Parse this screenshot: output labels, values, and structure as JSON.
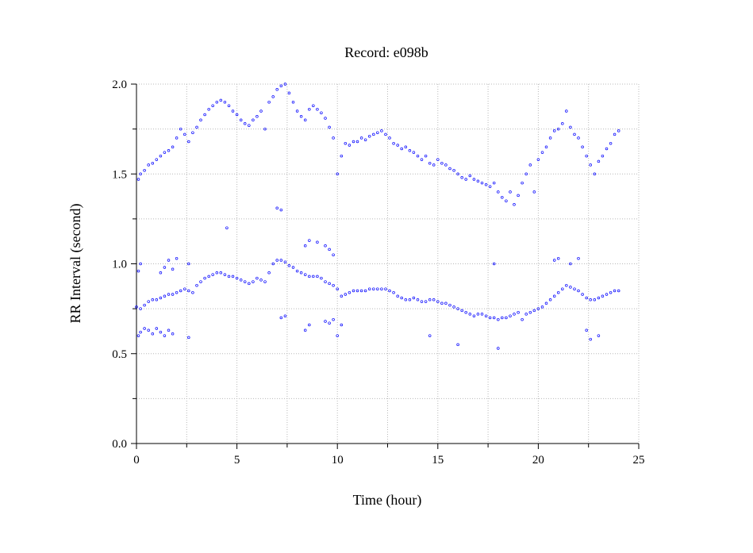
{
  "chart_data": {
    "type": "scatter",
    "title": "Record:  e098b",
    "xlabel": "Time (hour)",
    "ylabel": "RR Interval (second)",
    "xlim": [
      0,
      25
    ],
    "ylim": [
      0.0,
      2.0
    ],
    "xticks": [
      0,
      5,
      10,
      15,
      20,
      25
    ],
    "xtick_labels": [
      "0",
      "5",
      "10",
      "15",
      "20",
      "25"
    ],
    "yticks": [
      0.0,
      0.5,
      1.0,
      1.5,
      2.0
    ],
    "ytick_labels": [
      "0.0",
      "0.5",
      "1.0",
      "1.5",
      "2.0"
    ],
    "grid": true,
    "marker": "circle-open",
    "color": "#0000ff",
    "series": [
      {
        "role": "main-rr-band",
        "points": [
          [
            0.0,
            0.76
          ],
          [
            0.2,
            0.75
          ],
          [
            0.4,
            0.77
          ],
          [
            0.6,
            0.79
          ],
          [
            0.8,
            0.8
          ],
          [
            1.0,
            0.8
          ],
          [
            1.2,
            0.81
          ],
          [
            1.4,
            0.82
          ],
          [
            1.6,
            0.83
          ],
          [
            1.8,
            0.83
          ],
          [
            2.0,
            0.84
          ],
          [
            2.2,
            0.85
          ],
          [
            2.4,
            0.86
          ],
          [
            2.6,
            0.85
          ],
          [
            2.8,
            0.84
          ],
          [
            3.0,
            0.88
          ],
          [
            3.2,
            0.9
          ],
          [
            3.4,
            0.92
          ],
          [
            3.6,
            0.93
          ],
          [
            3.8,
            0.94
          ],
          [
            4.0,
            0.95
          ],
          [
            4.2,
            0.95
          ],
          [
            4.4,
            0.94
          ],
          [
            4.6,
            0.93
          ],
          [
            4.8,
            0.93
          ],
          [
            5.0,
            0.92
          ],
          [
            5.2,
            0.91
          ],
          [
            5.4,
            0.9
          ],
          [
            5.6,
            0.89
          ],
          [
            5.8,
            0.9
          ],
          [
            6.0,
            0.92
          ],
          [
            6.2,
            0.91
          ],
          [
            6.4,
            0.9
          ],
          [
            6.6,
            0.95
          ],
          [
            6.8,
            1.0
          ],
          [
            7.0,
            1.02
          ],
          [
            7.2,
            1.02
          ],
          [
            7.4,
            1.01
          ],
          [
            7.6,
            0.99
          ],
          [
            7.8,
            0.98
          ],
          [
            8.0,
            0.96
          ],
          [
            8.2,
            0.95
          ],
          [
            8.4,
            0.94
          ],
          [
            8.6,
            0.93
          ],
          [
            8.8,
            0.93
          ],
          [
            9.0,
            0.93
          ],
          [
            9.2,
            0.92
          ],
          [
            9.4,
            0.9
          ],
          [
            9.6,
            0.89
          ],
          [
            9.8,
            0.88
          ],
          [
            10.0,
            0.86
          ],
          [
            10.2,
            0.82
          ],
          [
            10.4,
            0.83
          ],
          [
            10.6,
            0.84
          ],
          [
            10.8,
            0.85
          ],
          [
            11.0,
            0.85
          ],
          [
            11.2,
            0.85
          ],
          [
            11.4,
            0.85
          ],
          [
            11.6,
            0.86
          ],
          [
            11.8,
            0.86
          ],
          [
            12.0,
            0.86
          ],
          [
            12.2,
            0.86
          ],
          [
            12.4,
            0.86
          ],
          [
            12.6,
            0.85
          ],
          [
            12.8,
            0.84
          ],
          [
            13.0,
            0.82
          ],
          [
            13.2,
            0.81
          ],
          [
            13.4,
            0.8
          ],
          [
            13.6,
            0.8
          ],
          [
            13.8,
            0.81
          ],
          [
            14.0,
            0.8
          ],
          [
            14.2,
            0.79
          ],
          [
            14.4,
            0.79
          ],
          [
            14.6,
            0.8
          ],
          [
            14.8,
            0.8
          ],
          [
            15.0,
            0.79
          ],
          [
            15.2,
            0.78
          ],
          [
            15.4,
            0.78
          ],
          [
            15.6,
            0.77
          ],
          [
            15.8,
            0.76
          ],
          [
            16.0,
            0.75
          ],
          [
            16.2,
            0.74
          ],
          [
            16.4,
            0.73
          ],
          [
            16.6,
            0.72
          ],
          [
            16.8,
            0.71
          ],
          [
            17.0,
            0.72
          ],
          [
            17.2,
            0.72
          ],
          [
            17.4,
            0.71
          ],
          [
            17.6,
            0.7
          ],
          [
            17.8,
            0.7
          ],
          [
            18.0,
            0.69
          ],
          [
            18.2,
            0.7
          ],
          [
            18.4,
            0.7
          ],
          [
            18.6,
            0.71
          ],
          [
            18.8,
            0.72
          ],
          [
            19.0,
            0.73
          ],
          [
            19.2,
            0.69
          ],
          [
            19.4,
            0.72
          ],
          [
            19.6,
            0.73
          ],
          [
            19.8,
            0.74
          ],
          [
            20.0,
            0.75
          ],
          [
            20.2,
            0.76
          ],
          [
            20.4,
            0.78
          ],
          [
            20.6,
            0.8
          ],
          [
            20.8,
            0.82
          ],
          [
            21.0,
            0.84
          ],
          [
            21.2,
            0.86
          ],
          [
            21.4,
            0.88
          ],
          [
            21.6,
            0.87
          ],
          [
            21.8,
            0.86
          ],
          [
            22.0,
            0.85
          ],
          [
            22.2,
            0.83
          ],
          [
            22.4,
            0.81
          ],
          [
            22.6,
            0.8
          ],
          [
            22.8,
            0.8
          ],
          [
            23.0,
            0.81
          ],
          [
            23.2,
            0.82
          ],
          [
            23.4,
            0.83
          ],
          [
            23.6,
            0.84
          ],
          [
            23.8,
            0.85
          ],
          [
            24.0,
            0.85
          ]
        ]
      },
      {
        "role": "upper-scattered-points",
        "points": [
          [
            0.1,
            1.47
          ],
          [
            0.2,
            1.5
          ],
          [
            0.4,
            1.52
          ],
          [
            0.6,
            1.55
          ],
          [
            0.8,
            1.56
          ],
          [
            1.0,
            1.58
          ],
          [
            1.2,
            1.6
          ],
          [
            1.4,
            1.62
          ],
          [
            1.6,
            1.63
          ],
          [
            1.8,
            1.65
          ],
          [
            2.0,
            1.7
          ],
          [
            2.2,
            1.75
          ],
          [
            2.4,
            1.72
          ],
          [
            2.6,
            1.68
          ],
          [
            2.8,
            1.73
          ],
          [
            3.0,
            1.76
          ],
          [
            3.2,
            1.8
          ],
          [
            3.4,
            1.83
          ],
          [
            3.6,
            1.86
          ],
          [
            3.8,
            1.88
          ],
          [
            4.0,
            1.9
          ],
          [
            4.2,
            1.91
          ],
          [
            4.4,
            1.9
          ],
          [
            4.6,
            1.88
          ],
          [
            4.8,
            1.85
          ],
          [
            5.0,
            1.83
          ],
          [
            5.2,
            1.8
          ],
          [
            5.4,
            1.78
          ],
          [
            5.6,
            1.77
          ],
          [
            5.8,
            1.8
          ],
          [
            6.0,
            1.82
          ],
          [
            6.2,
            1.85
          ],
          [
            6.4,
            1.75
          ],
          [
            6.6,
            1.9
          ],
          [
            6.8,
            1.93
          ],
          [
            7.0,
            1.97
          ],
          [
            7.2,
            1.99
          ],
          [
            7.4,
            2.0
          ],
          [
            7.6,
            1.95
          ],
          [
            7.8,
            1.9
          ],
          [
            8.0,
            1.85
          ],
          [
            8.2,
            1.82
          ],
          [
            8.4,
            1.8
          ],
          [
            8.6,
            1.86
          ],
          [
            8.8,
            1.88
          ],
          [
            9.0,
            1.86
          ],
          [
            9.2,
            1.84
          ],
          [
            9.4,
            1.81
          ],
          [
            9.6,
            1.76
          ],
          [
            9.8,
            1.7
          ],
          [
            10.0,
            1.5
          ],
          [
            10.2,
            1.6
          ],
          [
            10.4,
            1.67
          ],
          [
            10.6,
            1.66
          ],
          [
            10.8,
            1.68
          ],
          [
            11.0,
            1.68
          ],
          [
            11.2,
            1.7
          ],
          [
            11.4,
            1.69
          ],
          [
            11.6,
            1.71
          ],
          [
            11.8,
            1.72
          ],
          [
            12.0,
            1.73
          ],
          [
            12.2,
            1.74
          ],
          [
            12.4,
            1.72
          ],
          [
            12.6,
            1.7
          ],
          [
            12.8,
            1.67
          ],
          [
            13.0,
            1.66
          ],
          [
            13.2,
            1.64
          ],
          [
            13.4,
            1.65
          ],
          [
            13.6,
            1.63
          ],
          [
            13.8,
            1.62
          ],
          [
            14.0,
            1.6
          ],
          [
            14.2,
            1.58
          ],
          [
            14.4,
            1.6
          ],
          [
            14.6,
            1.56
          ],
          [
            14.8,
            1.55
          ],
          [
            15.0,
            1.58
          ],
          [
            15.2,
            1.56
          ],
          [
            15.4,
            1.55
          ],
          [
            15.6,
            1.53
          ],
          [
            15.8,
            1.52
          ],
          [
            16.0,
            1.5
          ],
          [
            16.2,
            1.48
          ],
          [
            16.4,
            1.47
          ],
          [
            16.6,
            1.49
          ],
          [
            16.8,
            1.47
          ],
          [
            17.0,
            1.46
          ],
          [
            17.2,
            1.45
          ],
          [
            17.4,
            1.44
          ],
          [
            17.6,
            1.43
          ],
          [
            17.8,
            1.45
          ],
          [
            18.0,
            1.4
          ],
          [
            18.2,
            1.37
          ],
          [
            18.4,
            1.35
          ],
          [
            18.6,
            1.4
          ],
          [
            18.8,
            1.33
          ],
          [
            19.0,
            1.38
          ],
          [
            19.2,
            1.45
          ],
          [
            19.4,
            1.5
          ],
          [
            19.6,
            1.55
          ],
          [
            19.8,
            1.4
          ],
          [
            20.0,
            1.58
          ],
          [
            20.2,
            1.62
          ],
          [
            20.4,
            1.65
          ],
          [
            20.6,
            1.7
          ],
          [
            20.8,
            1.74
          ],
          [
            21.0,
            1.75
          ],
          [
            21.2,
            1.78
          ],
          [
            21.4,
            1.85
          ],
          [
            21.6,
            1.76
          ],
          [
            21.8,
            1.72
          ],
          [
            22.0,
            1.7
          ],
          [
            22.2,
            1.65
          ],
          [
            22.4,
            1.6
          ],
          [
            22.6,
            1.55
          ],
          [
            22.8,
            1.5
          ],
          [
            23.0,
            1.57
          ],
          [
            23.2,
            1.6
          ],
          [
            23.4,
            1.64
          ],
          [
            23.6,
            1.67
          ],
          [
            23.8,
            1.72
          ],
          [
            24.0,
            1.74
          ],
          [
            7.0,
            1.31
          ],
          [
            7.2,
            1.3
          ],
          [
            4.5,
            1.2
          ]
        ]
      },
      {
        "role": "lower-scattered-points",
        "points": [
          [
            0.1,
            0.6
          ],
          [
            0.2,
            0.62
          ],
          [
            0.4,
            0.64
          ],
          [
            0.6,
            0.63
          ],
          [
            0.8,
            0.61
          ],
          [
            1.0,
            0.64
          ],
          [
            1.2,
            0.62
          ],
          [
            1.4,
            0.6
          ],
          [
            1.6,
            0.63
          ],
          [
            1.8,
            0.61
          ],
          [
            2.6,
            0.59
          ],
          [
            7.2,
            0.7
          ],
          [
            7.4,
            0.71
          ],
          [
            8.4,
            0.63
          ],
          [
            8.6,
            0.66
          ],
          [
            9.4,
            0.68
          ],
          [
            9.6,
            0.67
          ],
          [
            9.8,
            0.69
          ],
          [
            10.0,
            0.6
          ],
          [
            10.2,
            0.66
          ],
          [
            14.6,
            0.6
          ],
          [
            16.0,
            0.55
          ],
          [
            18.0,
            0.53
          ],
          [
            22.4,
            0.63
          ],
          [
            22.6,
            0.58
          ],
          [
            23.0,
            0.6
          ]
        ]
      },
      {
        "role": "upper-cluster-points",
        "points": [
          [
            0.1,
            0.96
          ],
          [
            0.2,
            1.0
          ],
          [
            1.2,
            0.95
          ],
          [
            1.4,
            0.98
          ],
          [
            1.6,
            1.02
          ],
          [
            1.8,
            0.97
          ],
          [
            2.0,
            1.03
          ],
          [
            2.6,
            1.0
          ],
          [
            8.4,
            1.1
          ],
          [
            8.6,
            1.13
          ],
          [
            9.0,
            1.12
          ],
          [
            9.4,
            1.1
          ],
          [
            9.6,
            1.08
          ],
          [
            9.8,
            1.05
          ],
          [
            17.8,
            1.0
          ],
          [
            20.8,
            1.02
          ],
          [
            21.0,
            1.03
          ],
          [
            21.6,
            1.0
          ],
          [
            22.0,
            1.03
          ]
        ]
      }
    ]
  }
}
